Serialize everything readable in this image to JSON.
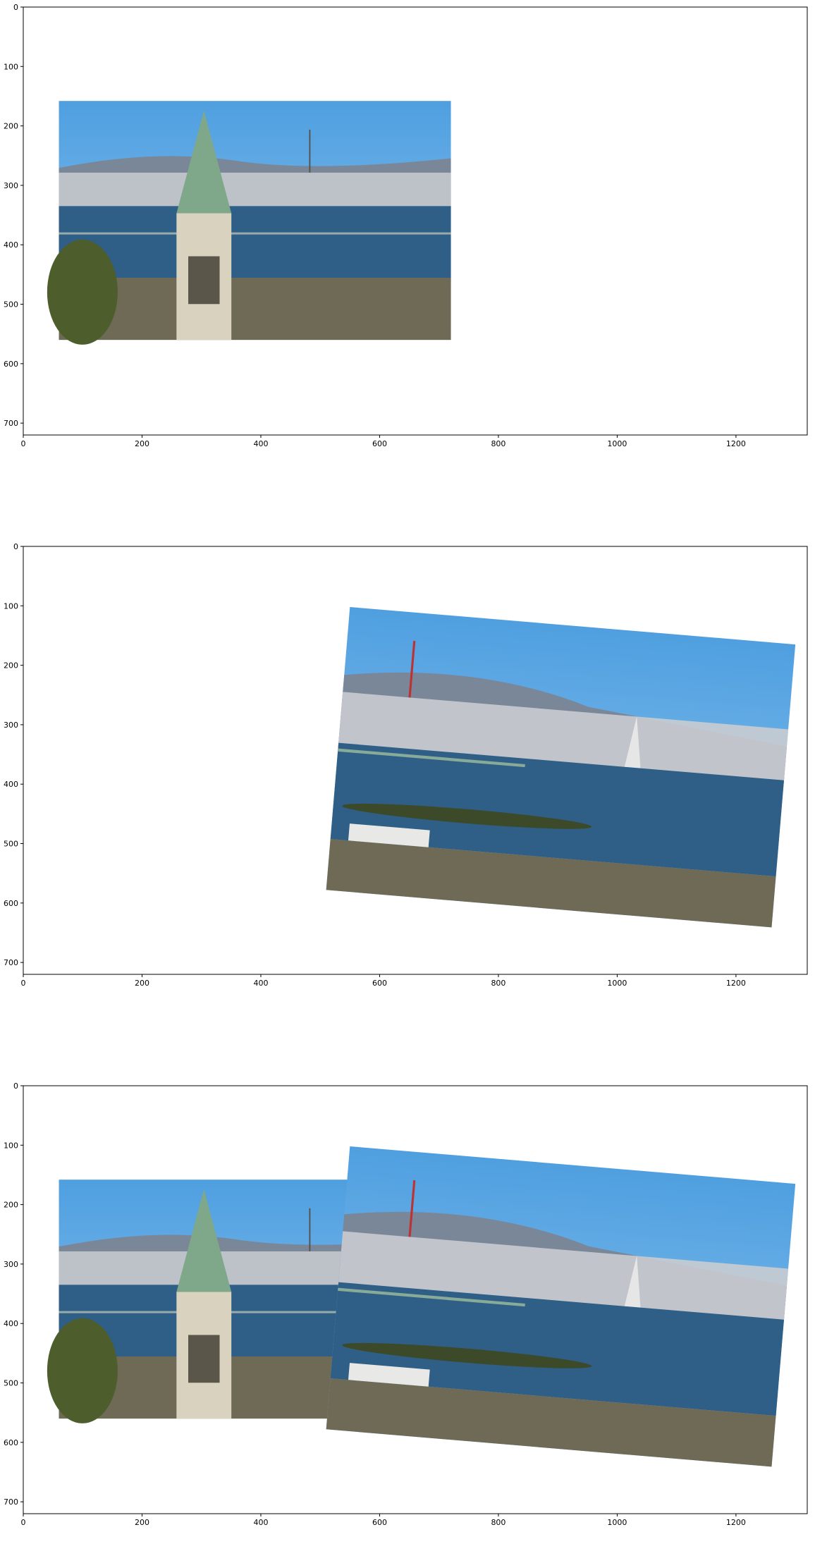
{
  "figure": {
    "panels": [
      {
        "name": "panel-1",
        "content": "left-image",
        "x_ticks": [
          "0",
          "200",
          "400",
          "600",
          "800",
          "1000",
          "1200"
        ],
        "y_ticks": [
          "0",
          "100",
          "200",
          "300",
          "400",
          "500",
          "600",
          "700"
        ]
      },
      {
        "name": "panel-2",
        "content": "warped-right-image",
        "x_ticks": [
          "0",
          "200",
          "400",
          "600",
          "800",
          "1000",
          "1200"
        ],
        "y_ticks": [
          "0",
          "100",
          "200",
          "300",
          "400",
          "500",
          "600",
          "700"
        ]
      },
      {
        "name": "panel-3",
        "content": "stitched-panorama",
        "x_ticks": [
          "0",
          "200",
          "400",
          "600",
          "800",
          "1000",
          "1200"
        ],
        "y_ticks": [
          "0",
          "100",
          "200",
          "300",
          "400",
          "500",
          "600",
          "700"
        ]
      }
    ],
    "axis_range": {
      "x": [
        0,
        1320
      ],
      "y": [
        720,
        0
      ]
    },
    "colors": {
      "sky_top": "#4f9fe0",
      "sky_bottom": "#8cc4ef",
      "hills": "#7a8799",
      "city": "#c9ccd0",
      "water": "#2f5f86",
      "shore": "#6e6a55",
      "tower_stone": "#d9d2bf",
      "tower_roof": "#7fa88a",
      "trees": "#4d5e2c"
    }
  }
}
